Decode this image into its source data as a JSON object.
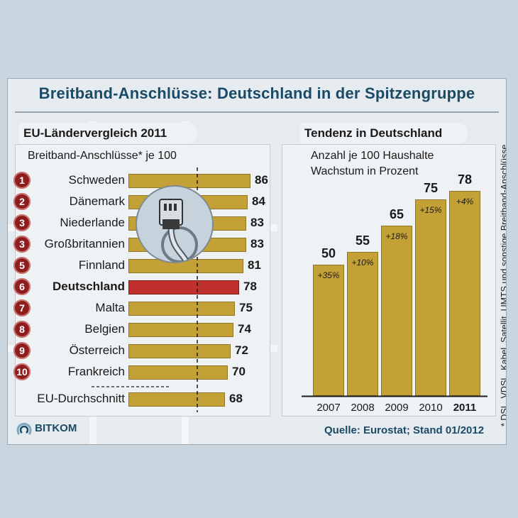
{
  "title": "Breitband-Anschlüsse: Deutschland in der Spitzengruppe",
  "left_panel": {
    "heading": "EU-Ländervergleich 2011",
    "subtitle": "Breitband-Anschlüsse* je 100"
  },
  "right_panel": {
    "heading": "Tendenz in Deutschland",
    "subtitle_line1": "Anzahl je 100 Haushalte",
    "subtitle_line2": "Wachstum in Prozent"
  },
  "source": "Quelle: Eurostat; Stand 01/2012",
  "logo_text": "BITKOM",
  "footnote": "* DSL, VDSL, Kabel, Satellit, UMTS und sonstige Breitband-Anschlüsse",
  "colors": {
    "bar": "#c4a136",
    "highlight": "#c0312e",
    "rank": "#8e1d1d",
    "title": "#1b4a66"
  },
  "chart_data": [
    {
      "type": "bar",
      "orientation": "horizontal",
      "title": "EU-Ländervergleich 2011",
      "ylabel": "Breitband-Anschlüsse* je 100",
      "categories": [
        "Schweden",
        "Dänemark",
        "Niederlande",
        "Großbritannien",
        "Finnland",
        "Deutschland",
        "Malta",
        "Belgien",
        "Österreich",
        "Frankreich"
      ],
      "ranks": [
        "1",
        "2",
        "3",
        "3",
        "5",
        "6",
        "7",
        "8",
        "9",
        "10"
      ],
      "values": [
        86,
        84,
        83,
        83,
        81,
        78,
        75,
        74,
        72,
        70
      ],
      "highlight": "Deutschland",
      "average": {
        "label": "EU-Durchschnitt",
        "value": 68
      }
    },
    {
      "type": "bar",
      "title": "Tendenz in Deutschland",
      "ylabel": "Anzahl je 100 Haushalte",
      "categories": [
        "2007",
        "2008",
        "2009",
        "2010",
        "2011"
      ],
      "values": [
        50,
        55,
        65,
        75,
        78
      ],
      "growth_labels": [
        "+35%",
        "+10%",
        "+18%",
        "+15%",
        "+4%"
      ]
    }
  ]
}
